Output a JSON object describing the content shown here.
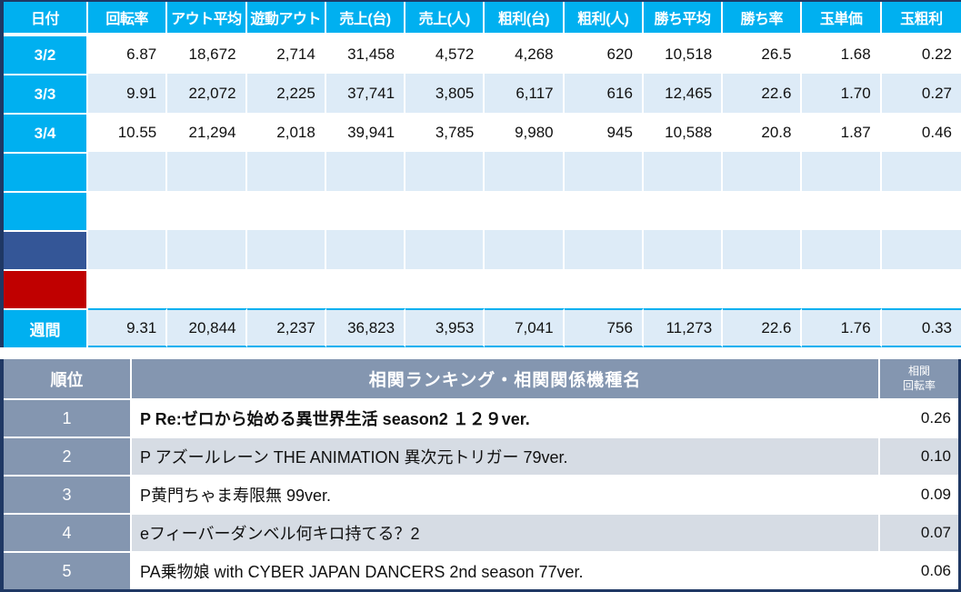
{
  "colors": {
    "accent_cyan": "#00B0F0",
    "band_light_blue": "#DDEBF7",
    "border_navy": "#1F3864",
    "marker_dark_blue": "#345697",
    "marker_red": "#C00000",
    "ranking_header_blue_gray": "#8496B0",
    "ranking_band": "#D6DCE4"
  },
  "table1": {
    "headers": [
      "日付",
      "回転率",
      "アウト平均",
      "遊動アウト",
      "売上(台)",
      "売上(人)",
      "粗利(台)",
      "粗利(人)",
      "勝ち平均",
      "勝ち率",
      "玉単価",
      "玉粗利"
    ],
    "rows": [
      {
        "label": "3/2",
        "cells": [
          "6.87",
          "18,672",
          "2,714",
          "31,458",
          "4,572",
          "4,268",
          "620",
          "10,518",
          "26.5",
          "1.68",
          "0.22"
        ]
      },
      {
        "label": "3/3",
        "cells": [
          "9.91",
          "22,072",
          "2,225",
          "37,741",
          "3,805",
          "6,117",
          "616",
          "12,465",
          "22.6",
          "1.70",
          "0.27"
        ]
      },
      {
        "label": "3/4",
        "cells": [
          "10.55",
          "21,294",
          "2,018",
          "39,941",
          "3,785",
          "9,980",
          "945",
          "10,588",
          "20.8",
          "1.87",
          "0.46"
        ]
      },
      {
        "label": "",
        "cells": [
          "",
          "",
          "",
          "",
          "",
          "",
          "",
          "",
          "",
          "",
          ""
        ]
      },
      {
        "label": "",
        "cells": [
          "",
          "",
          "",
          "",
          "",
          "",
          "",
          "",
          "",
          "",
          ""
        ]
      },
      {
        "label": "",
        "cells": [
          "",
          "",
          "",
          "",
          "",
          "",
          "",
          "",
          "",
          "",
          ""
        ]
      },
      {
        "label": "",
        "cells": [
          "",
          "",
          "",
          "",
          "",
          "",
          "",
          "",
          "",
          "",
          ""
        ]
      },
      {
        "label": "週間",
        "cells": [
          "9.31",
          "20,844",
          "2,237",
          "36,823",
          "3,953",
          "7,041",
          "756",
          "11,273",
          "22.6",
          "1.76",
          "0.33"
        ]
      }
    ]
  },
  "table2": {
    "rank_header": "順位",
    "title": "相関ランキング・相関関係機種名",
    "corr_header_line1": "相関",
    "corr_header_line2": "回転率",
    "rows": [
      {
        "rank": "1",
        "name": "P Re:ゼロから始める異世界生活 season2 １２９ver.",
        "value": "0.26"
      },
      {
        "rank": "2",
        "name": "P アズールレーン THE ANIMATION 異次元トリガー 79ver.",
        "value": "0.10"
      },
      {
        "rank": "3",
        "name": "P黄門ちゃま寿限無 99ver.",
        "value": "0.09"
      },
      {
        "rank": "4",
        "name": "eフィーバーダンベル何キロ持てる？2",
        "value": "0.07"
      },
      {
        "rank": "5",
        "name": "PA乗物娘 with CYBER JAPAN DANCERS 2nd season 77ver.",
        "value": "0.06"
      }
    ]
  }
}
